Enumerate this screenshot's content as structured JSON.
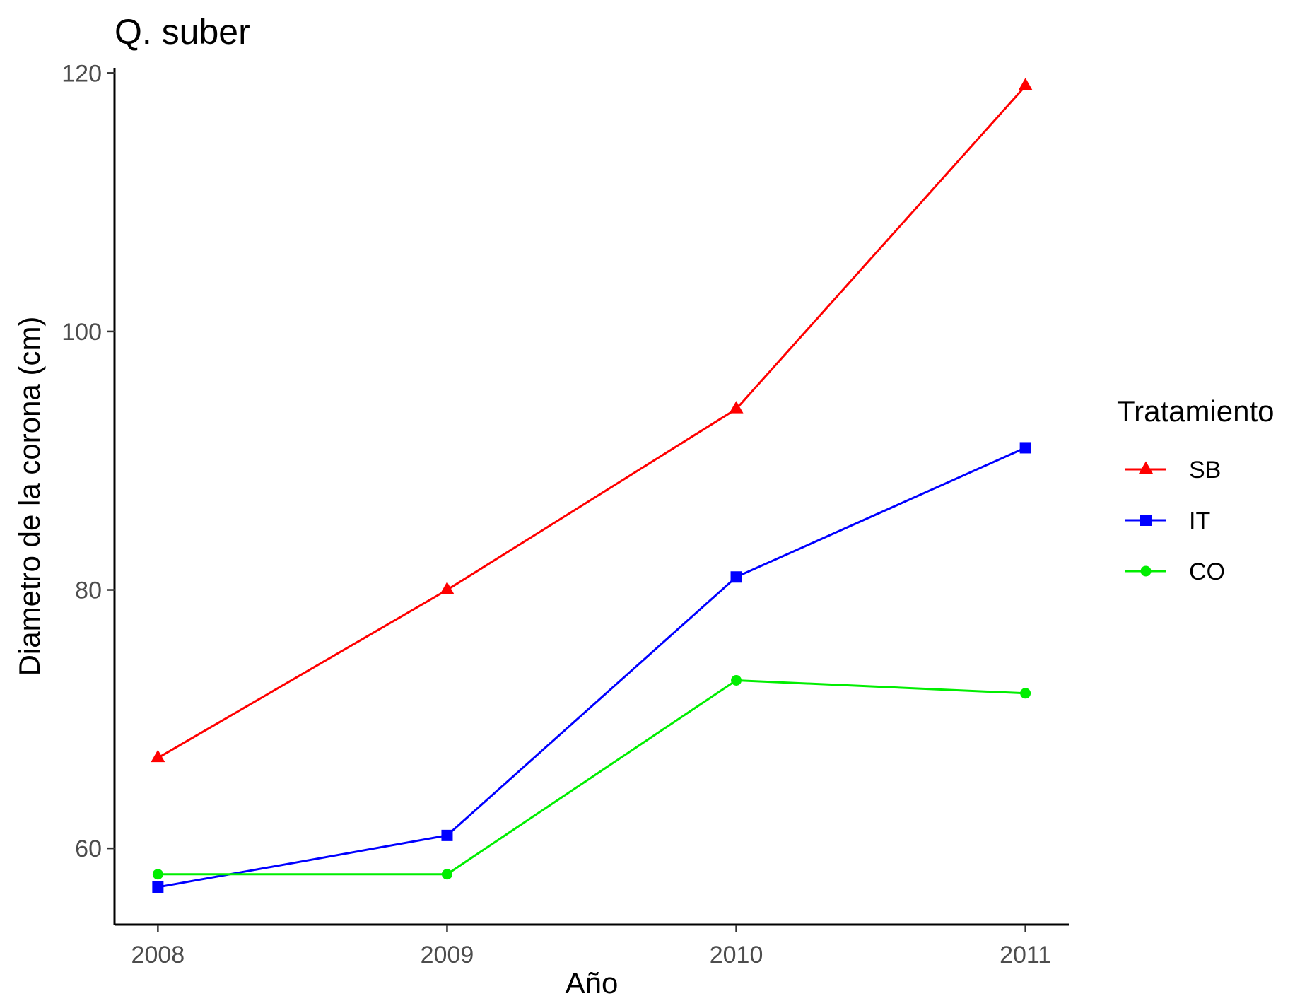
{
  "chart_data": {
    "type": "line",
    "title": "Q. suber",
    "xlabel": "Año",
    "ylabel": "Diametro de la corona (cm)",
    "x": [
      2008,
      2009,
      2010,
      2011
    ],
    "x_tick_labels": [
      "2008",
      "2009",
      "2010",
      "2011"
    ],
    "y_ticks": [
      60,
      80,
      100,
      120
    ],
    "y_tick_labels": [
      "60",
      "80",
      "100",
      "120"
    ],
    "xlim": [
      2007.85,
      2011.15
    ],
    "ylim": [
      54.1,
      120.4
    ],
    "grid": false,
    "legend": {
      "title": "Tratamiento",
      "position": "right"
    },
    "series": [
      {
        "name": "SB",
        "color": "#ff0000",
        "marker": "triangle",
        "values": [
          67,
          80,
          94,
          119
        ]
      },
      {
        "name": "IT",
        "color": "#0000ff",
        "marker": "square",
        "values": [
          57,
          61,
          81,
          91
        ]
      },
      {
        "name": "CO",
        "color": "#00ee00",
        "marker": "circle",
        "values": [
          58,
          58,
          73,
          72
        ]
      }
    ]
  }
}
